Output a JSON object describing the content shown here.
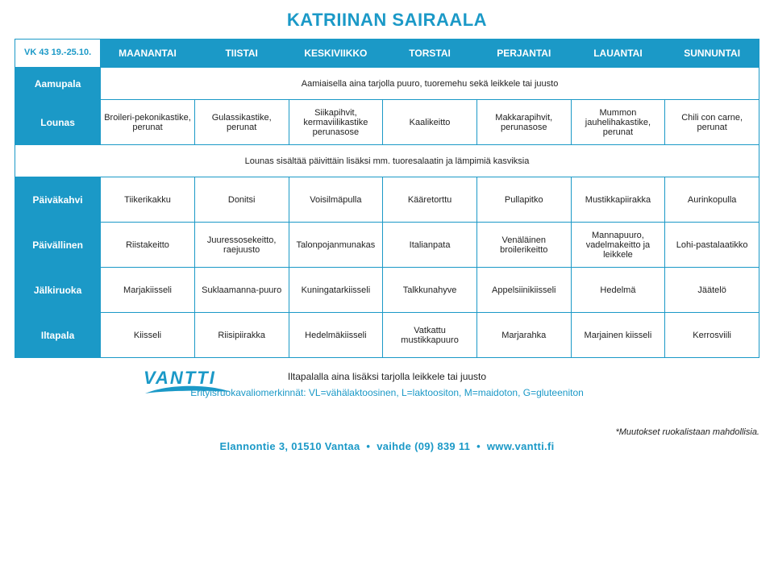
{
  "colors": {
    "brand": "#1b99c7",
    "text": "#222222",
    "bg": "#ffffff"
  },
  "page": {
    "title": "KATRIINAN SAIRAALA",
    "week_label": "VK 43 19.-25.10.",
    "typography": {
      "title_fontsize": 22,
      "cell_fontsize": 11,
      "header_fontsize": 12
    }
  },
  "days": [
    "MAANANTAI",
    "TIISTAI",
    "KESKIVIIKKO",
    "TORSTAI",
    "PERJANTAI",
    "LAUANTAI",
    "SUNNUNTAI"
  ],
  "rows": [
    {
      "label": "Aamupala",
      "span": true,
      "text": "Aamiaisella aina tarjolla puuro, tuoremehu sekä leikkele tai juusto"
    },
    {
      "label": "Lounas",
      "cells": [
        "Broileri-pekonikastike, perunat",
        "Gulassikastike, perunat",
        "Siikapihvit, kermaviilikastike perunasose",
        "Kaalikeitto",
        "Makkarapihvit, perunasose",
        "Mummon jauhelihakastike, perunat",
        "Chili con carne, perunat"
      ]
    },
    {
      "label": "",
      "span": true,
      "text": "Lounas sisältää päivittäin lisäksi mm. tuoresalaatin ja  lämpimiä kasviksia",
      "no_label": true
    },
    {
      "label": "Päiväkahvi",
      "cells": [
        "Tiikerikakku",
        "Donitsi",
        "Voisilmäpulla",
        "Kääretorttu",
        "Pullapitko",
        "Mustikkapiirakka",
        "Aurinkopulla"
      ]
    },
    {
      "label": "Päivällinen",
      "cells": [
        "Riistakeitto",
        "Juuressosekeitto, raejuusto",
        "Talonpojanmunakas",
        "Italianpata",
        "Venäläinen broilerikeitto",
        "Mannapuuro, vadelmakeitto ja leikkele",
        "Lohi-pastalaatikko"
      ]
    },
    {
      "label": "Jälkiruoka",
      "cells": [
        "Marjakiisseli",
        "Suklaamanna-puuro",
        "Kuningatarkiisseli",
        "Talkkunahyve",
        "Appelsiinikiisseli",
        "Hedelmä",
        "Jäätelö"
      ]
    },
    {
      "label": "Iltapala",
      "cells": [
        "Kiisseli",
        "Riisipiirakka",
        "Hedelmäkiisseli",
        "Vatkattu mustikkapuuro",
        "Marjarahka",
        "Marjainen kiisseli",
        "Kerrosviili"
      ]
    }
  ],
  "footer": {
    "note": "Iltapalalla aina lisäksi tarjolla leikkele tai juusto",
    "diet": "Erityisruokavaliomerkinnät: VL=vähälaktoosinen, L=laktoositon, M=maidoton, G=gluteeniton",
    "disclaimer": "*Muutokset ruokalistaan mahdollisia.",
    "contact": {
      "address": "Elannontie 3, 01510 Vantaa",
      "phone": "vaihde (09) 839 11",
      "url": "www.vantti.fi"
    }
  },
  "logo": {
    "text": "VANTTI",
    "swoosh_color": "#1b99c7"
  }
}
